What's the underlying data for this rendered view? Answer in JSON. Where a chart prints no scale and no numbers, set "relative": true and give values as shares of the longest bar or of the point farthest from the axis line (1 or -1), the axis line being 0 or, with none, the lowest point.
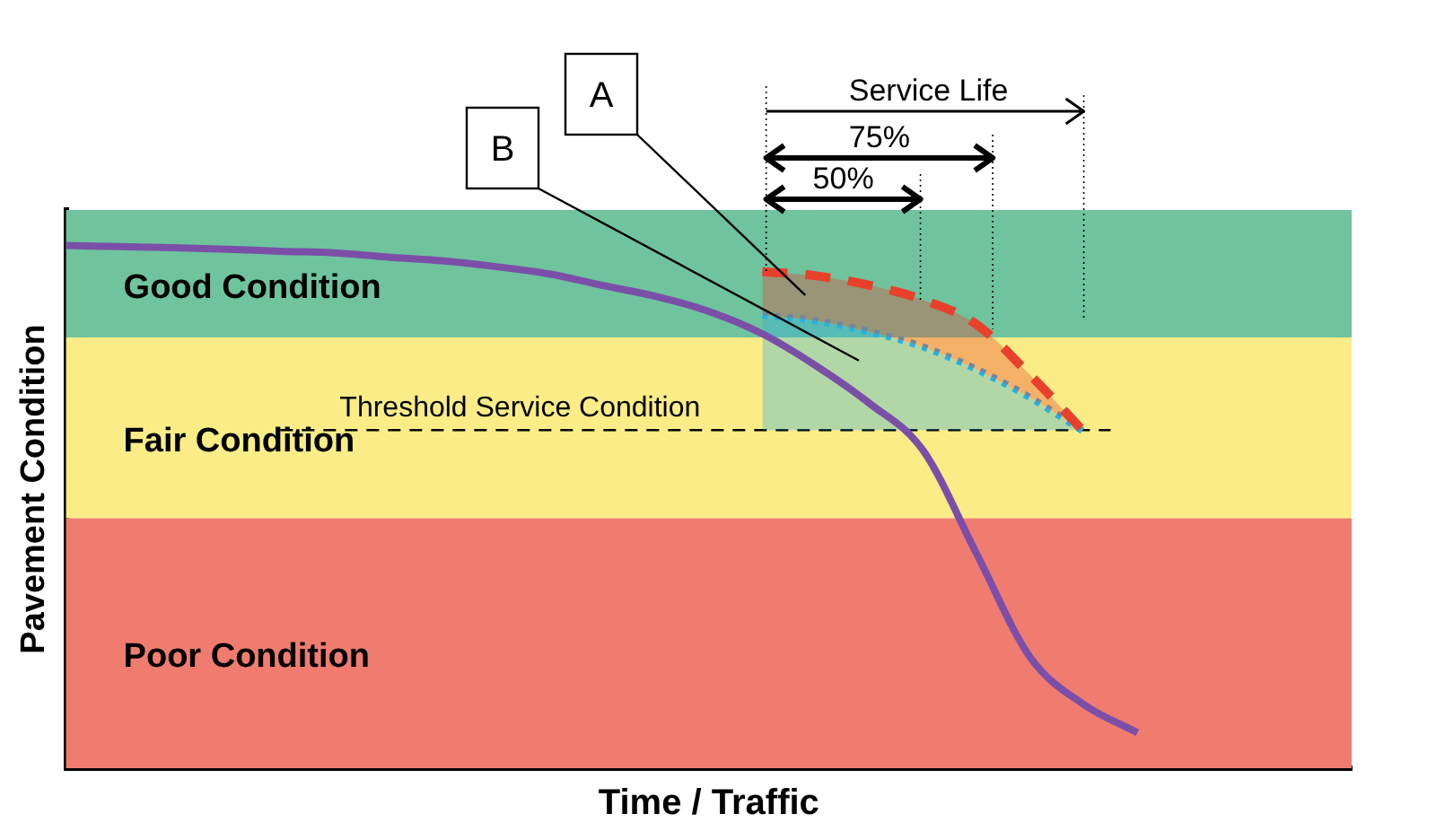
{
  "chart_data": {
    "type": "line",
    "relative": true,
    "xlabel": "Time / Traffic",
    "ylabel": "Pavement Condition",
    "categories": [
      null,
      null,
      null,
      null,
      null,
      null,
      null,
      null,
      null,
      null,
      null,
      null,
      null,
      null,
      null,
      null,
      null,
      null,
      null,
      null,
      null,
      null,
      null,
      null,
      null
    ],
    "series": [
      {
        "type": "line",
        "color": "#7b4fa8",
        "line_style": "solid",
        "values": [
          1.0,
          0.998,
          0.996,
          0.993,
          0.989,
          0.986,
          0.978,
          0.971,
          0.96,
          0.946,
          0.924,
          0.903,
          0.874,
          0.831,
          0.77,
          0.698,
          0.608,
          0.41,
          0.212,
          0.122,
          0.068,
          null,
          null,
          null,
          null
        ]
      },
      {
        "type": "area",
        "color": "#e8402a",
        "line_style": "dashed",
        "values": [
          null,
          null,
          null,
          null,
          null,
          null,
          null,
          null,
          null,
          null,
          null,
          null,
          null,
          0.95,
          0.942,
          0.924,
          0.896,
          0.849,
          0.752,
          0.644,
          null,
          null,
          null,
          null,
          null
        ]
      },
      {
        "type": "area",
        "color": "#2ab0e0",
        "line_style": "dotted",
        "values": [
          null,
          null,
          null,
          null,
          null,
          null,
          null,
          null,
          null,
          null,
          null,
          null,
          null,
          0.867,
          0.856,
          0.835,
          0.806,
          0.763,
          0.709,
          0.644,
          null,
          null,
          null,
          null,
          null
        ]
      }
    ],
    "bands": [
      {
        "axis": "y",
        "from": 0.824,
        "to": 1.068,
        "label": "Good Condition",
        "color": "#6fc49e"
      },
      {
        "axis": "y",
        "from": 0.478,
        "to": 0.824,
        "label": "Fair Condition",
        "color": "#faed87"
      },
      {
        "axis": "y",
        "from": 0,
        "to": 0.478,
        "label": "Poor Condition",
        "color": "#f07c70"
      }
    ],
    "ref_lines": [
      {
        "axis": "y",
        "value": 0.647,
        "label": "Threshold Service Condition",
        "color": "#000000",
        "line_style": "dashed"
      }
    ],
    "annotations": [
      "A",
      "B",
      "Service Life",
      "75%",
      "50%"
    ],
    "legend": false,
    "grid": false,
    "marker": "none"
  }
}
